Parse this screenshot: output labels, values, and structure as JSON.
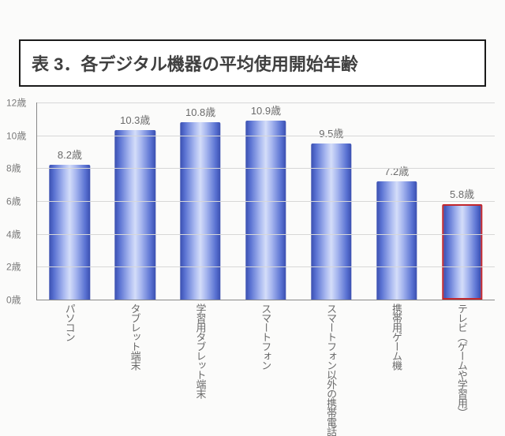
{
  "title": "表 3．各デジタル機器の平均使用開始年齢",
  "chart": {
    "type": "bar",
    "background_color": "#fbfbfa",
    "grid_color": "#d7d7d7",
    "axis_color": "#888888",
    "y_label_color": "#7a7a7a",
    "value_label_color": "#6a6a6a",
    "title_fontsize": 22,
    "ylim": [
      0,
      12
    ],
    "ytick_step": 2,
    "ytick_suffix": "歳",
    "value_suffix": "歳",
    "bar_gradient": [
      "#3a4fb0",
      "#5a72d2",
      "#a6b6ef",
      "#d4ddf9",
      "#a6b6ef",
      "#5a72d2",
      "#3a4fb0"
    ],
    "highlight_border_color": "#c2272d",
    "bar_width_ratio": 0.62,
    "categories": [
      "パソコン",
      "タブレット端末",
      "学習用タブレット端末",
      "スマートフォン",
      "スマートフォン以外の携帯電話",
      "携帯用ゲーム機",
      "テレビ（ゲームや学習用）"
    ],
    "values": [
      8.2,
      10.3,
      10.8,
      10.9,
      9.5,
      7.2,
      5.8
    ],
    "highlight_index": 6
  }
}
